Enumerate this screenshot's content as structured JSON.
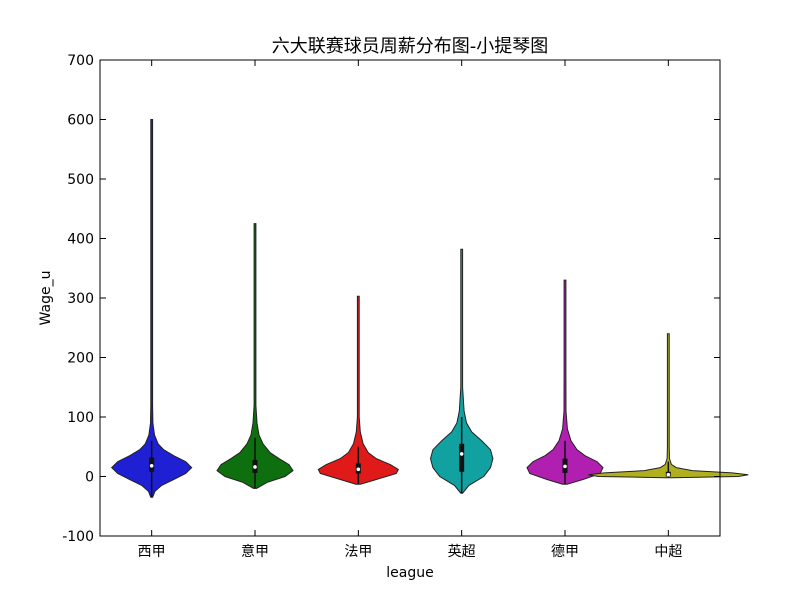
{
  "chart_data": {
    "type": "violin",
    "title": "六大联赛球员周薪分布图-小提琴图",
    "xlabel": "league",
    "ylabel": "Wage_u",
    "ylim": [
      -100,
      700
    ],
    "yticks": [
      -100,
      0,
      100,
      200,
      300,
      400,
      500,
      600,
      700
    ],
    "grid": false,
    "categories": [
      "西甲",
      "意甲",
      "法甲",
      "英超",
      "德甲",
      "中超"
    ],
    "series": [
      {
        "category": "西甲",
        "color": "#1f1fd4",
        "min": -35,
        "max": 600,
        "q1": 8,
        "median": 18,
        "q3": 32,
        "whisker_low": -35,
        "whisker_high": 60,
        "density": [
          [
            -35,
            0.02
          ],
          [
            -25,
            0.08
          ],
          [
            -15,
            0.25
          ],
          [
            -5,
            0.55
          ],
          [
            5,
            0.85
          ],
          [
            15,
            1.0
          ],
          [
            25,
            0.85
          ],
          [
            35,
            0.55
          ],
          [
            45,
            0.3
          ],
          [
            55,
            0.16
          ],
          [
            70,
            0.07
          ],
          [
            90,
            0.03
          ],
          [
            120,
            0.012
          ],
          [
            200,
            0.006
          ],
          [
            600,
            0.005
          ]
        ]
      },
      {
        "category": "意甲",
        "color": "#0e6f0e",
        "min": -20,
        "max": 425,
        "q1": 6,
        "median": 16,
        "q3": 28,
        "whisker_low": -20,
        "whisker_high": 65,
        "density": [
          [
            -20,
            0.04
          ],
          [
            -10,
            0.3
          ],
          [
            0,
            0.75
          ],
          [
            10,
            0.95
          ],
          [
            20,
            0.85
          ],
          [
            30,
            0.6
          ],
          [
            40,
            0.38
          ],
          [
            55,
            0.2
          ],
          [
            70,
            0.1
          ],
          [
            90,
            0.05
          ],
          [
            120,
            0.02
          ],
          [
            200,
            0.008
          ],
          [
            425,
            0.005
          ]
        ]
      },
      {
        "category": "法甲",
        "color": "#e01919",
        "min": -13,
        "max": 303,
        "q1": 5,
        "median": 12,
        "q3": 22,
        "whisker_low": -13,
        "whisker_high": 50,
        "density": [
          [
            -13,
            0.06
          ],
          [
            -5,
            0.45
          ],
          [
            5,
            0.95
          ],
          [
            12,
            1.0
          ],
          [
            20,
            0.8
          ],
          [
            30,
            0.45
          ],
          [
            40,
            0.25
          ],
          [
            55,
            0.12
          ],
          [
            75,
            0.05
          ],
          [
            100,
            0.02
          ],
          [
            150,
            0.008
          ],
          [
            303,
            0.005
          ]
        ]
      },
      {
        "category": "英超",
        "color": "#11a1a1",
        "min": -28,
        "max": 382,
        "q1": 8,
        "median": 38,
        "q3": 55,
        "whisker_low": -28,
        "whisker_high": 100,
        "density": [
          [
            -28,
            0.02
          ],
          [
            -15,
            0.18
          ],
          [
            0,
            0.55
          ],
          [
            15,
            0.72
          ],
          [
            30,
            0.78
          ],
          [
            45,
            0.72
          ],
          [
            60,
            0.5
          ],
          [
            75,
            0.25
          ],
          [
            90,
            0.12
          ],
          [
            110,
            0.06
          ],
          [
            150,
            0.02
          ],
          [
            250,
            0.008
          ],
          [
            382,
            0.005
          ]
        ]
      },
      {
        "category": "德甲",
        "color": "#b01fb0",
        "min": -13,
        "max": 330,
        "q1": 6,
        "median": 17,
        "q3": 30,
        "whisker_low": -13,
        "whisker_high": 60,
        "density": [
          [
            -13,
            0.06
          ],
          [
            -5,
            0.45
          ],
          [
            5,
            0.88
          ],
          [
            15,
            0.95
          ],
          [
            25,
            0.8
          ],
          [
            35,
            0.5
          ],
          [
            45,
            0.3
          ],
          [
            60,
            0.15
          ],
          [
            80,
            0.06
          ],
          [
            110,
            0.025
          ],
          [
            180,
            0.008
          ],
          [
            330,
            0.005
          ]
        ]
      },
      {
        "category": "中超",
        "color": "#b0b01f",
        "min": -2,
        "max": 240,
        "q1": 0,
        "median": 3,
        "q3": 8,
        "whisker_low": -2,
        "whisker_high": 25,
        "density": [
          [
            -2,
            0.1
          ],
          [
            0,
            1.75
          ],
          [
            3,
            2.0
          ],
          [
            6,
            1.6
          ],
          [
            10,
            0.6
          ],
          [
            15,
            0.2
          ],
          [
            20,
            0.08
          ],
          [
            30,
            0.03
          ],
          [
            50,
            0.015
          ],
          [
            100,
            0.008
          ],
          [
            240,
            0.005
          ]
        ]
      }
    ]
  }
}
